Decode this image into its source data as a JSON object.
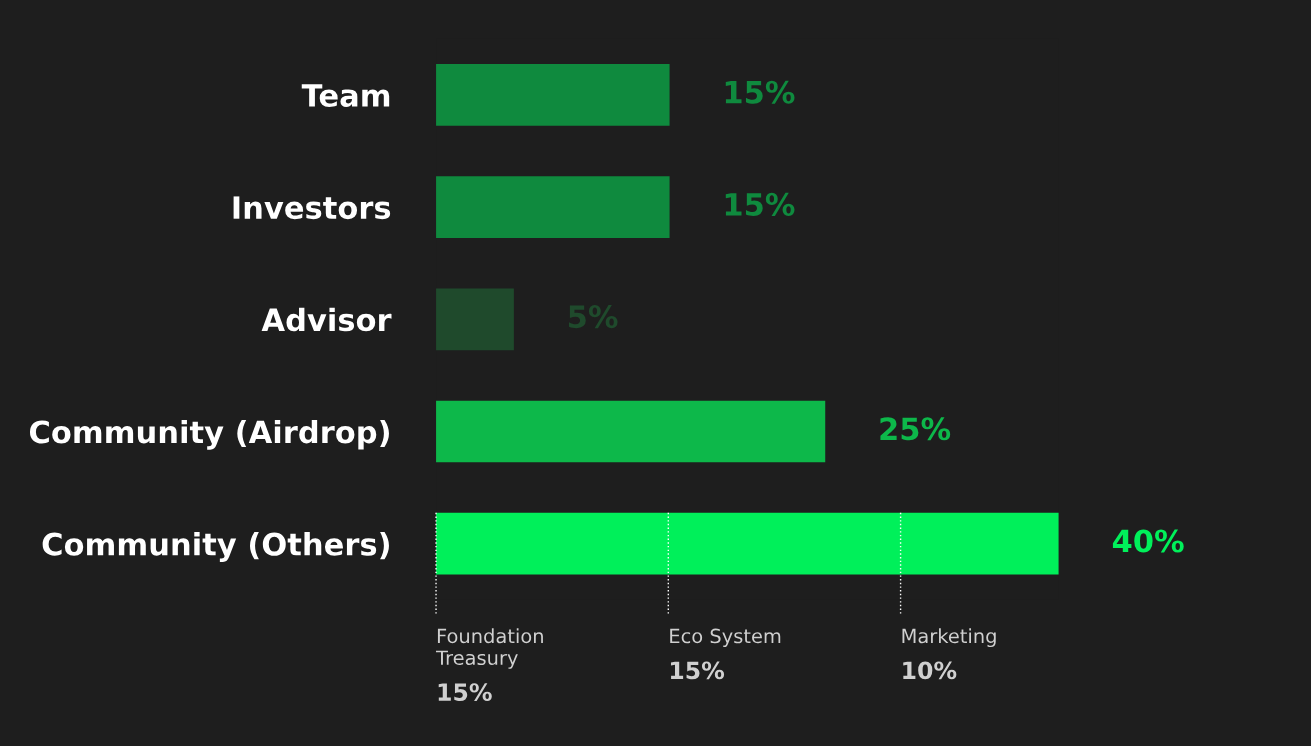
{
  "chart_data": {
    "type": "bar",
    "orientation": "horizontal",
    "categories": [
      "Team",
      "Investors",
      "Advisor",
      "Community (Airdrop)",
      "Community (Others)"
    ],
    "series": [
      {
        "values": [
          15,
          15,
          5,
          25,
          40
        ],
        "colors": [
          "#0f8a3e",
          "#0f8a3e",
          "#1f4a2c",
          "#0db84a",
          "#00f05a"
        ],
        "value_labels": [
          "15%",
          "15%",
          "5%",
          "25%",
          "40%"
        ]
      }
    ],
    "tick_labels": "y",
    "annotations": [
      "Foundation\nTreasury\n15%",
      "Eco System\n15%",
      "Marketing\n10%"
    ]
  }
}
